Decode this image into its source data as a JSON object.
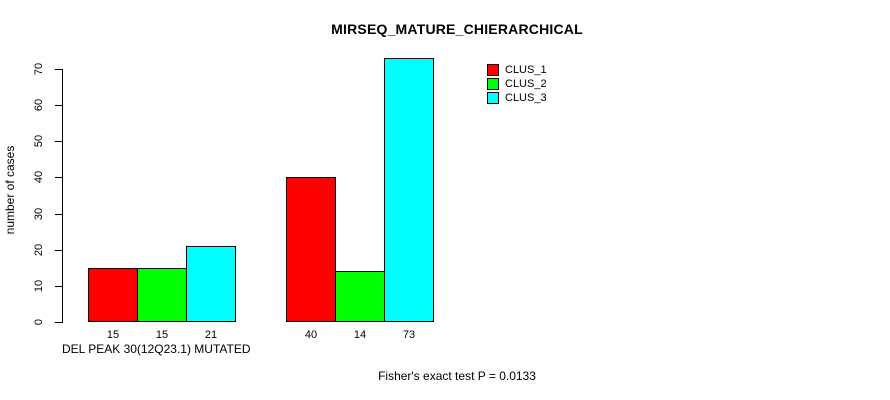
{
  "chart_data": {
    "type": "bar",
    "title": "MIRSEQ_MATURE_CHIERARCHICAL",
    "ylabel": "number of cases",
    "xlabel": "DEL PEAK 30(12Q23.1) MUTATED",
    "ylim": [
      0,
      70
    ],
    "yticks": [
      0,
      10,
      20,
      30,
      40,
      50,
      60,
      70
    ],
    "grid": false,
    "legend_position": "top-right",
    "group_count": 2,
    "series": [
      {
        "name": "CLUS_1",
        "color": "#FF0000",
        "values": [
          15,
          40
        ]
      },
      {
        "name": "CLUS_2",
        "color": "#00FF00",
        "values": [
          15,
          14
        ]
      },
      {
        "name": "CLUS_3",
        "color": "#00FFFF",
        "values": [
          21,
          73
        ]
      }
    ],
    "bar_labels": [
      [
        15,
        15,
        21
      ],
      [
        40,
        14,
        73
      ]
    ],
    "annotation": "Fisher's exact test P = 0.0133"
  }
}
